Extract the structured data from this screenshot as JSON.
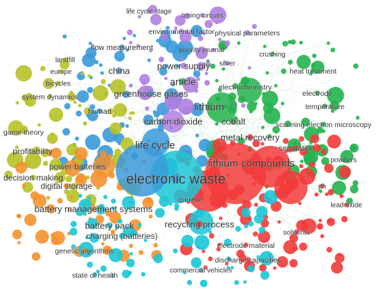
{
  "nodes": [
    {
      "label": "life cycle stage",
      "color": "#b07fe0"
    },
    {
      "label": "timing circuits",
      "color": "#b07fe0"
    },
    {
      "label": "environmental factor",
      "color": "#b07fe0"
    },
    {
      "label": "physical parameters",
      "color": "#b07fe0"
    },
    {
      "label": "flow measurement",
      "color": "#3a9ad9"
    },
    {
      "label": "priority journal",
      "color": "#b07fe0"
    },
    {
      "label": "crushing",
      "color": "#22b24c"
    },
    {
      "label": "landfill",
      "color": "#b8c228"
    },
    {
      "label": "silver",
      "color": "#b07fe0"
    },
    {
      "label": "europe",
      "color": "#b8c228"
    },
    {
      "label": "china",
      "color": "#3a9ad9"
    },
    {
      "label": "power supply",
      "color": "#b07fe0"
    },
    {
      "label": "heat treatment",
      "color": "#22b24c"
    },
    {
      "label": "bicycles",
      "color": "#b8c228"
    },
    {
      "label": "article",
      "color": "#22b24c"
    },
    {
      "label": "electrochemistry",
      "color": "#22b24c"
    },
    {
      "label": "electrode",
      "color": "#22b24c"
    },
    {
      "label": "system dynamics",
      "color": "#b8c228"
    },
    {
      "label": "greenhouse gases",
      "color": "#3a9ad9"
    },
    {
      "label": "lithium",
      "color": "#22b24c"
    },
    {
      "label": "temperature",
      "color": "#22b24c"
    },
    {
      "label": "human",
      "color": "#3a9ad9"
    },
    {
      "label": "carbon dioxide",
      "color": "#b07fe0"
    },
    {
      "label": "cobalt",
      "color": "#22b24c"
    },
    {
      "label": "scanning electron microscopy",
      "color": "#22b24c"
    },
    {
      "label": "game theory",
      "color": "#b8c228"
    },
    {
      "label": "metal recovery",
      "color": "#f23b3b"
    },
    {
      "label": "profitability",
      "color": "#b8c228"
    },
    {
      "label": "life cycle",
      "color": "#3a9ad9"
    },
    {
      "label": "separation",
      "color": "#f23b3b"
    },
    {
      "label": "powders",
      "color": "#22b24c"
    },
    {
      "label": "lithium compounds",
      "color": "#f23b3b"
    },
    {
      "label": "power batteries",
      "color": "#f5922f"
    },
    {
      "label": "decision making",
      "color": "#b8c228"
    },
    {
      "label": "electronic waste",
      "color": "#3a9ad9"
    },
    {
      "label": "digital storage",
      "color": "#f5922f"
    },
    {
      "label": "ph",
      "color": "#f23b3b"
    },
    {
      "label": "current",
      "color": "#1bc7d6"
    },
    {
      "label": "lead oxide",
      "color": "#f23b3b"
    },
    {
      "label": "battery management systems",
      "color": "#f5922f"
    },
    {
      "label": "recycling process",
      "color": "#f23b3b"
    },
    {
      "label": "battery pack",
      "color": "#1bc7d6"
    },
    {
      "label": "solvents",
      "color": "#f23b3b"
    },
    {
      "label": "charging (batteries)",
      "color": "#1bc7d6"
    },
    {
      "label": "electrode material",
      "color": "#f23b3b"
    },
    {
      "label": "genetic algorithms",
      "color": "#f5922f"
    },
    {
      "label": "discharge capacities",
      "color": "#f23b3b"
    },
    {
      "label": "commercial vehicles",
      "color": "#1bc7d6"
    },
    {
      "label": "state of health",
      "color": "#1bc7d6"
    }
  ]
}
